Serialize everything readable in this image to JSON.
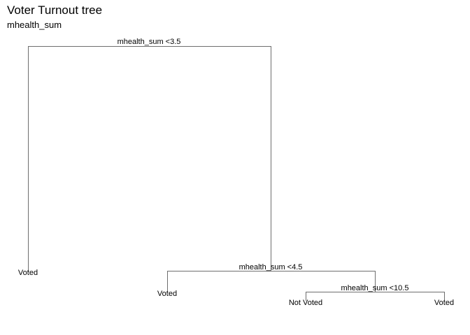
{
  "header": {
    "title": "Voter Turnout tree",
    "subtitle": "mhealth_sum"
  },
  "colors": {
    "branch": "#6e6e6e",
    "text": "#000000"
  },
  "tree": {
    "splits": [
      {
        "label": "mhealth_sum <3.5"
      },
      {
        "label": "mhealth_sum <4.5"
      },
      {
        "label": "mhealth_sum <10.5"
      }
    ],
    "leaves": [
      {
        "label": "Voted"
      },
      {
        "label": "Voted"
      },
      {
        "label": "Not Voted"
      },
      {
        "label": "Voted"
      }
    ]
  }
}
